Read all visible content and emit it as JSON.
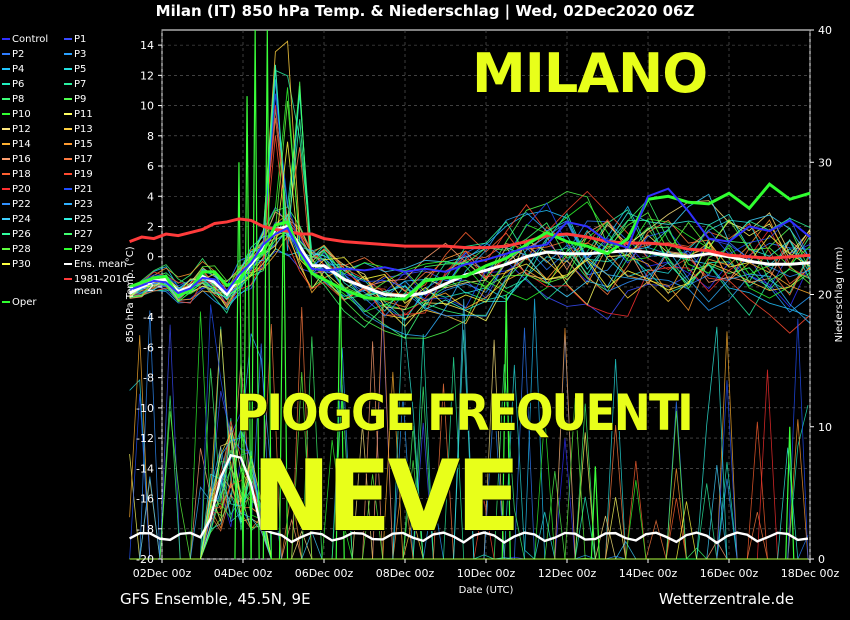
{
  "title": "Milan  (IT)  850 hPa Temp. & Niederschlag | Wed, 02Dec2020 06Z",
  "footer": {
    "left": "GFS Ensemble, 45.5N, 9E",
    "right": "Wetterzentrale.de"
  },
  "overlays": {
    "milano": "MILANO",
    "piogge": "PIOGGE FREQUENTI",
    "neve": "NEVE"
  },
  "legend": [
    {
      "label": "Control",
      "color": "#3030ff"
    },
    {
      "label": "P1",
      "color": "#3a4dff"
    },
    {
      "label": "P2",
      "color": "#2e7dff"
    },
    {
      "label": "P3",
      "color": "#2aa0ff"
    },
    {
      "label": "P4",
      "color": "#22c6ff"
    },
    {
      "label": "P5",
      "color": "#25e0e0"
    },
    {
      "label": "P6",
      "color": "#20f0c0"
    },
    {
      "label": "P7",
      "color": "#2af0a0"
    },
    {
      "label": "P8",
      "color": "#3dff7a"
    },
    {
      "label": "P9",
      "color": "#50ff50"
    },
    {
      "label": "P10",
      "color": "#30ff30"
    },
    {
      "label": "P11",
      "color": "#ffff60"
    },
    {
      "label": "P12",
      "color": "#ffe880"
    },
    {
      "label": "P13",
      "color": "#ffd040"
    },
    {
      "label": "P14",
      "color": "#ffb030"
    },
    {
      "label": "P15",
      "color": "#ff9a30"
    },
    {
      "label": "P16",
      "color": "#ffa070"
    },
    {
      "label": "P17",
      "color": "#ff7a40"
    },
    {
      "label": "P18",
      "color": "#ff6030"
    },
    {
      "label": "P19",
      "color": "#ff4a30"
    },
    {
      "label": "P20",
      "color": "#ff3030"
    },
    {
      "label": "P21",
      "color": "#2050ff"
    },
    {
      "label": "P22",
      "color": "#3090ff"
    },
    {
      "label": "P23",
      "color": "#30b0ff"
    },
    {
      "label": "P24",
      "color": "#40d0ff"
    },
    {
      "label": "P25",
      "color": "#30f0e0"
    },
    {
      "label": "P26",
      "color": "#30ffa0"
    },
    {
      "label": "P27",
      "color": "#40ff70"
    },
    {
      "label": "P28",
      "color": "#60ff40"
    },
    {
      "label": "P29",
      "color": "#30ff30"
    },
    {
      "label": "P30",
      "color": "#ffff40"
    },
    {
      "label": "Ens. mean",
      "color": "#ffffff"
    },
    {
      "label": "1981-2010\nmean",
      "color": "#ff3b3b"
    },
    {
      "label": "Oper",
      "color": "#30ff30"
    }
  ],
  "chart_data": {
    "type": "line",
    "title": "Milan  (IT)  850 hPa Temp. & Niederschlag | Wed, 02Dec2020 06Z",
    "xlabel": "Date (UTC)",
    "ylabel": "850 hPa Temp. (°C)",
    "y2label": "Niederschlag (mm)",
    "x_ticks": [
      "02Dec 00z",
      "04Dec 00z",
      "06Dec 00z",
      "08Dec 00z",
      "10Dec 00z",
      "12Dec 00z",
      "14Dec 00z",
      "16Dec 00z",
      "18Dec 00z"
    ],
    "x_range_days": [
      0,
      16
    ],
    "ylim": [
      -20,
      15
    ],
    "y_ticks": [
      -20,
      -18,
      -16,
      -14,
      -12,
      -10,
      -8,
      -6,
      -4,
      -2,
      0,
      2,
      4,
      6,
      8,
      10,
      12,
      14
    ],
    "y2lim": [
      0,
      40
    ],
    "y2_ticks": [
      0,
      10,
      20,
      30,
      40
    ],
    "grid": true,
    "series": [
      {
        "name": "Ens. mean",
        "color": "#ffffff",
        "width": 3,
        "x": [
          1.2,
          1.5,
          1.8,
          2.1,
          2.4,
          2.7,
          3.0,
          3.3,
          3.6,
          3.9,
          4.2,
          4.5,
          4.8,
          5.1,
          5.4,
          5.7,
          6.0,
          6.5,
          7.0,
          7.5,
          8.0,
          8.5,
          9.0,
          9.5,
          10.0,
          10.5,
          11.0,
          11.5,
          12.0,
          12.5,
          13.0,
          13.5,
          14.0,
          14.5,
          15.0,
          15.5,
          16.0,
          16.5,
          17.0,
          17.5,
          18.0
        ],
        "y": [
          -2.4,
          -2.0,
          -1.6,
          -1.5,
          -2.3,
          -2.0,
          -1.3,
          -1.7,
          -2.5,
          -1.4,
          -0.5,
          0.5,
          1.8,
          2.0,
          0.7,
          -0.6,
          -0.6,
          -1.5,
          -2.0,
          -2.5,
          -2.6,
          -2.4,
          -1.8,
          -1.2,
          -0.9,
          -0.5,
          0.0,
          0.3,
          0.2,
          0.2,
          0.3,
          0.4,
          0.3,
          0.1,
          0.0,
          0.2,
          0.0,
          -0.3,
          -0.5,
          -0.5,
          -0.4
        ]
      },
      {
        "name": "1981-2010 mean",
        "color": "#ff3b3b",
        "width": 3,
        "x": [
          1.2,
          1.5,
          1.8,
          2.1,
          2.4,
          2.7,
          3.0,
          3.3,
          3.6,
          3.9,
          4.2,
          4.5,
          4.8,
          5.1,
          5.4,
          5.7,
          6.0,
          6.5,
          7.0,
          7.5,
          8.0,
          8.5,
          9.0,
          9.5,
          10.0,
          10.5,
          11.0,
          11.5,
          12.0,
          12.5,
          13.0,
          13.5,
          14.0,
          14.5,
          15.0,
          15.5,
          16.0,
          16.5,
          17.0,
          17.5,
          18.0
        ],
        "y": [
          1.0,
          1.3,
          1.2,
          1.5,
          1.4,
          1.6,
          1.8,
          2.2,
          2.3,
          2.5,
          2.4,
          2.0,
          1.8,
          1.7,
          1.5,
          1.5,
          1.2,
          1.0,
          0.9,
          0.8,
          0.7,
          0.7,
          0.7,
          0.6,
          0.6,
          0.7,
          1.0,
          1.4,
          1.5,
          1.3,
          1.0,
          0.9,
          0.9,
          0.8,
          0.5,
          0.4,
          0.1,
          0.0,
          -0.1,
          0.0,
          0.1
        ]
      },
      {
        "name": "Oper",
        "color": "#30ff30",
        "width": 3,
        "x": [
          1.2,
          1.5,
          1.8,
          2.1,
          2.4,
          2.7,
          3.0,
          3.3,
          3.6,
          3.9,
          4.2,
          4.5,
          4.8,
          5.1,
          5.4,
          5.7,
          6.0,
          6.5,
          7.0,
          7.5,
          8.0,
          8.5,
          9.0,
          9.5,
          10.0,
          10.5,
          11.0,
          11.5,
          12.0,
          12.5,
          13.0,
          13.5,
          14.0,
          14.5,
          15.0,
          15.5,
          16.0,
          16.5,
          17.0,
          17.5,
          18.0
        ],
        "y": [
          -2.0,
          -1.7,
          -1.4,
          -1.3,
          -2.6,
          -2.2,
          -1.0,
          -1.0,
          -1.9,
          -1.6,
          -0.2,
          0.3,
          2.1,
          2.3,
          0.3,
          -1.1,
          -1.5,
          -2.2,
          -2.7,
          -2.8,
          -2.8,
          -1.6,
          -1.4,
          -1.3,
          -0.6,
          -0.1,
          0.8,
          1.6,
          1.0,
          0.7,
          0.2,
          1.2,
          3.8,
          4.0,
          3.6,
          3.5,
          4.2,
          3.2,
          4.8,
          3.8,
          4.2
        ]
      },
      {
        "name": "Control",
        "color": "#3030ff",
        "width": 2,
        "x": [
          1.2,
          1.5,
          1.8,
          2.1,
          2.4,
          2.7,
          3.0,
          3.3,
          3.6,
          3.9,
          4.2,
          4.5,
          4.8,
          5.1,
          5.4,
          5.7,
          6.0,
          6.5,
          7.0,
          7.5,
          8.0,
          8.5,
          9.0,
          9.5,
          10.0,
          10.5,
          11.0,
          11.5,
          12.0,
          12.5,
          13.0,
          13.5,
          14.0,
          14.5,
          15.0,
          15.5,
          16.0,
          16.5,
          17.0,
          17.5,
          18.0
        ],
        "y": [
          -2.2,
          -1.9,
          -1.6,
          -1.7,
          -2.4,
          -2.1,
          -1.4,
          -1.5,
          -2.3,
          -1.2,
          -0.4,
          0.8,
          1.5,
          1.9,
          0.4,
          -0.8,
          -0.9,
          -0.8,
          -0.9,
          -0.7,
          -1.0,
          -0.8,
          -1.0,
          -0.5,
          -0.2,
          0.2,
          0.6,
          0.8,
          2.3,
          2.0,
          1.0,
          0.6,
          4.0,
          4.5,
          3.0,
          1.2,
          1.0,
          2.0,
          1.7,
          2.4,
          1.3
        ]
      }
    ],
    "precip_peaks_mm": [
      {
        "day": 4.3,
        "value": 40
      },
      {
        "day": 4.6,
        "value": 40
      },
      {
        "day": 4.1,
        "value": 35
      },
      {
        "day": 5.0,
        "value": 28
      },
      {
        "day": 3.9,
        "value": 30
      },
      {
        "day": 6.4,
        "value": 22
      },
      {
        "day": 10.5,
        "value": 20
      },
      {
        "day": 12.7,
        "value": 7
      },
      {
        "day": 17.5,
        "value": 10
      }
    ]
  }
}
